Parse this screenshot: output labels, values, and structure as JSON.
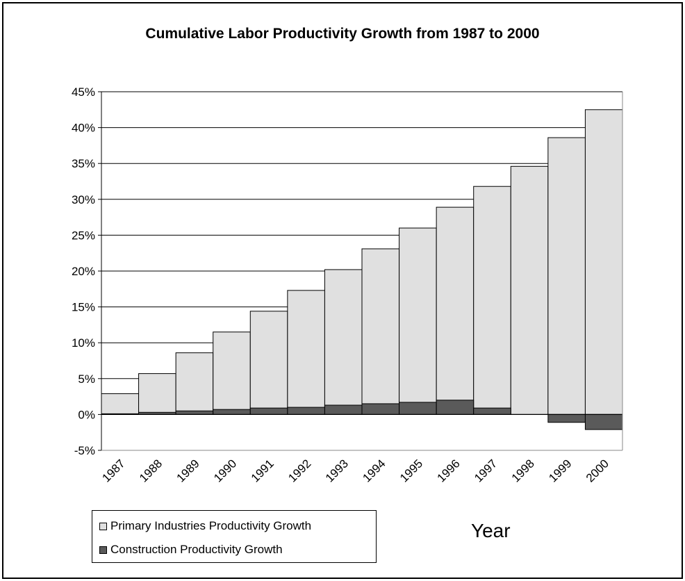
{
  "chart_data": {
    "type": "bar",
    "title": "Cumulative Labor Productivity Growth from 1987 to 2000",
    "xlabel": "Year",
    "ylabel": "",
    "categories": [
      "1987",
      "1988",
      "1989",
      "1990",
      "1991",
      "1992",
      "1993",
      "1994",
      "1995",
      "1996",
      "1997",
      "1998",
      "1999",
      "2000"
    ],
    "series": [
      {
        "name": "Primary Industries Productivity Growth",
        "color": "#e0e0e0",
        "values": [
          2.9,
          5.7,
          8.6,
          11.5,
          14.4,
          17.3,
          20.2,
          23.1,
          26.0,
          28.9,
          31.8,
          34.6,
          38.6,
          42.5
        ]
      },
      {
        "name": "Construction Productivity Growth",
        "color": "#5a5a5a",
        "values": [
          0.1,
          0.3,
          0.5,
          0.7,
          0.9,
          1.0,
          1.3,
          1.5,
          1.7,
          2.0,
          0.9,
          0.0,
          -1.1,
          -2.1
        ]
      }
    ],
    "ylim": [
      -5,
      45
    ],
    "ytick_step": 5,
    "ytick_labels": [
      "-5%",
      "0%",
      "5%",
      "10%",
      "15%",
      "20%",
      "25%",
      "30%",
      "35%",
      "40%",
      "45%"
    ],
    "grid": true,
    "legend_position": "bottom-left",
    "bar_gap": "none (histogram style, overlapping series)"
  }
}
